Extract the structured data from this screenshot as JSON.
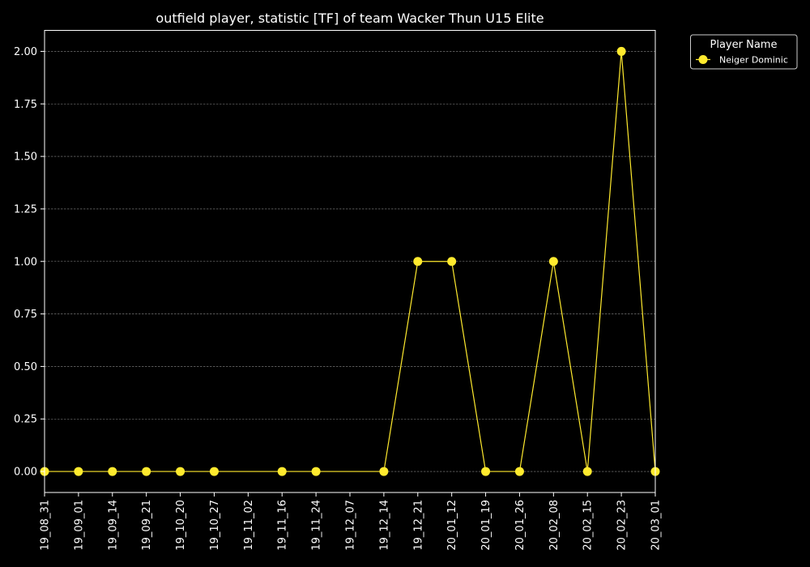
{
  "chart_data": {
    "type": "line",
    "title": "outfield player, statistic [TF] of team Wacker Thun U15 Elite",
    "xlabel": "",
    "ylabel": "",
    "categories": [
      "19_08_31",
      "19_09_01",
      "19_09_14",
      "19_09_21",
      "19_10_20",
      "19_10_27",
      "19_11_02",
      "19_11_16",
      "19_11_24",
      "19_12_07",
      "19_12_14",
      "19_12_21",
      "20_01_12",
      "20_01_19",
      "20_01_26",
      "20_02_08",
      "20_02_15",
      "20_02_23",
      "20_03_01"
    ],
    "ylim": [
      -0.1,
      2.1
    ],
    "yticks": [
      "0.00",
      "0.25",
      "0.50",
      "0.75",
      "1.00",
      "1.25",
      "1.50",
      "1.75",
      "2.00"
    ],
    "grid": "horizontal dashed",
    "legend": {
      "title": "Player Name",
      "placement": "outside top-right"
    },
    "series": [
      {
        "name": "Neiger Dominic",
        "color": "#ffea2e",
        "values": [
          0,
          0,
          0,
          0,
          0,
          0,
          null,
          0,
          0,
          null,
          0,
          1,
          1,
          0,
          0,
          1,
          0,
          2,
          0
        ]
      }
    ],
    "colors": {
      "background": "#000000",
      "text": "#ffffff",
      "grid": "#8a8a8a",
      "axis": "#ffffff"
    }
  }
}
